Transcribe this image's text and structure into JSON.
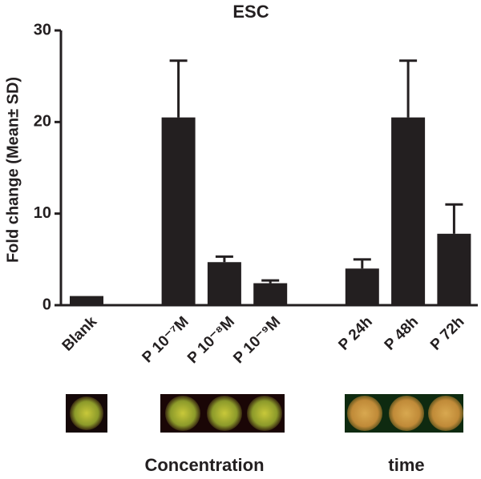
{
  "chart_data": {
    "type": "bar",
    "title": "ESC",
    "y_label": "Fold change (Mean± SD)",
    "categories": [
      "Blank",
      null,
      "P 10⁻⁷M",
      "P 10⁻⁸M",
      "P 10⁻⁹M",
      null,
      "P 24h",
      "P 48h",
      "P 72h"
    ],
    "values": [
      1.0,
      null,
      20.5,
      4.7,
      2.4,
      null,
      4.0,
      20.5,
      7.8
    ],
    "errors": [
      null,
      null,
      6.2,
      0.6,
      0.3,
      null,
      1.0,
      6.2,
      3.2
    ],
    "color": "#231f20",
    "ylim": [
      0,
      30
    ],
    "yticks": [
      0,
      10,
      20,
      30
    ],
    "grid": false,
    "group_labels": [
      "Concentration",
      "time"
    ]
  }
}
